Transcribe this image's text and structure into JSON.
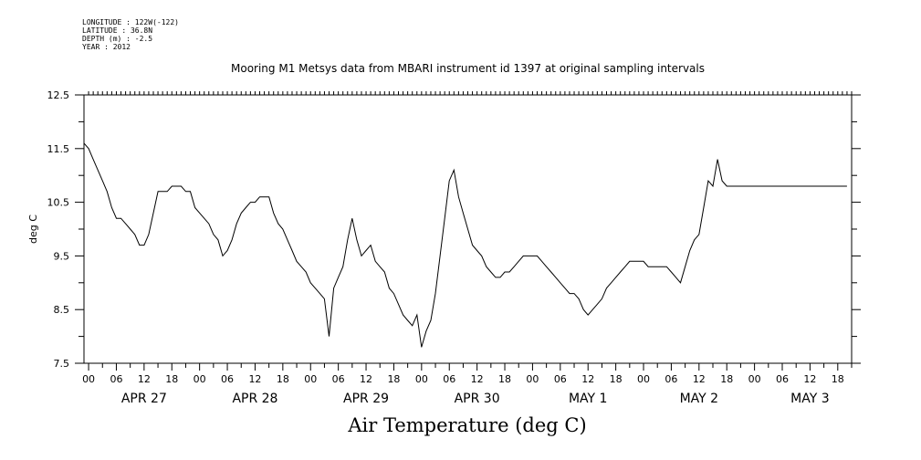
{
  "meta": {
    "longitude": "LONGITUDE : 122W(-122)",
    "latitude": "LATITUDE : 36.8N",
    "depth": "DEPTH (m) : -2.5",
    "year": "YEAR : 2012"
  },
  "chart_data": {
    "type": "line",
    "title": "Mooring M1 Metsys data from MBARI instrument id 1397 at original sampling intervals",
    "xlabel": "Air Temperature (deg C)",
    "ylabel": "deg C",
    "ylim": [
      7.5,
      12.5
    ],
    "yticks": [
      "7.5",
      "8.5",
      "9.5",
      "10.5",
      "11.5",
      "12.5"
    ],
    "xlim_hours": [
      -1,
      165
    ],
    "hour_ticks": [
      "00",
      "06",
      "12",
      "18",
      "00",
      "06",
      "12",
      "18",
      "00",
      "06",
      "12",
      "18",
      "00",
      "06",
      "12",
      "18",
      "00",
      "06",
      "12",
      "18",
      "00",
      "06",
      "12",
      "18",
      "00",
      "06",
      "12",
      "18"
    ],
    "day_labels": [
      "APR 27",
      "APR 28",
      "APR 29",
      "APR 30",
      "MAY  1",
      "MAY  2",
      "MAY  3"
    ],
    "grid": false,
    "legend": "none",
    "line_color": "#000000",
    "series": [
      {
        "x": [
          -1,
          0,
          1,
          2,
          3,
          4,
          5,
          6,
          7,
          8,
          9,
          10,
          11,
          12,
          13,
          14,
          15,
          16,
          17,
          18,
          19,
          20,
          21,
          22,
          23,
          24,
          25,
          26,
          27,
          28,
          29,
          30,
          31,
          32,
          33,
          34,
          35,
          36,
          37,
          38,
          39,
          40,
          41,
          42,
          43,
          44,
          45,
          46,
          47,
          48,
          49,
          50,
          51,
          52,
          53,
          54,
          55,
          56,
          57,
          58,
          59,
          60,
          61,
          62,
          63,
          64,
          65,
          66,
          67,
          68,
          69,
          70,
          71,
          72,
          73,
          74,
          75,
          76,
          77,
          78,
          79,
          80,
          81,
          82,
          83,
          84,
          85,
          86,
          87,
          88,
          89,
          90,
          91,
          92,
          93,
          94,
          95,
          96,
          97,
          98,
          99,
          100,
          101,
          102,
          103,
          104,
          105,
          106,
          107,
          108,
          109,
          110,
          111,
          112,
          113,
          114,
          115,
          116,
          117,
          118,
          119,
          120,
          121,
          122,
          123,
          124,
          125,
          126,
          127,
          128,
          129,
          130,
          131,
          132,
          133,
          134,
          135,
          136,
          137,
          138,
          139,
          140,
          141,
          142,
          143,
          144,
          145,
          146,
          147,
          148,
          149,
          150,
          151,
          152,
          153,
          154,
          155,
          156,
          157,
          158,
          159,
          160,
          161,
          162,
          163,
          164
        ],
        "y": [
          11.6,
          11.5,
          11.3,
          11.1,
          10.9,
          10.7,
          10.4,
          10.2,
          10.2,
          10.1,
          10.0,
          9.9,
          9.7,
          9.7,
          9.9,
          10.3,
          10.7,
          10.7,
          10.7,
          10.8,
          10.8,
          10.8,
          10.7,
          10.7,
          10.4,
          10.3,
          10.2,
          10.1,
          9.9,
          9.8,
          9.5,
          9.6,
          9.8,
          10.1,
          10.3,
          10.4,
          10.5,
          10.5,
          10.6,
          10.6,
          10.6,
          10.3,
          10.1,
          10.0,
          9.8,
          9.6,
          9.4,
          9.3,
          9.2,
          9.0,
          8.9,
          8.8,
          8.7,
          8.0,
          8.9,
          9.1,
          9.3,
          9.8,
          10.2,
          9.8,
          9.5,
          9.6,
          9.7,
          9.4,
          9.3,
          9.2,
          8.9,
          8.8,
          8.6,
          8.4,
          8.3,
          8.2,
          8.4,
          7.8,
          8.1,
          8.3,
          8.8,
          9.5,
          10.2,
          10.9,
          11.1,
          10.6,
          10.3,
          10.0,
          9.7,
          9.6,
          9.5,
          9.3,
          9.2,
          9.1,
          9.1,
          9.2,
          9.2,
          9.3,
          9.4,
          9.5,
          9.5,
          9.5,
          9.5,
          9.4,
          9.3,
          9.2,
          9.1,
          9.0,
          8.9,
          8.8,
          8.8,
          8.7,
          8.5,
          8.4,
          8.5,
          8.6,
          8.7,
          8.9,
          9.0,
          9.1,
          9.2,
          9.3,
          9.4,
          9.4,
          9.4,
          9.4,
          9.3,
          9.3,
          9.3,
          9.3,
          9.3,
          9.2,
          9.1,
          9.0,
          9.3,
          9.6,
          9.8,
          9.9,
          10.4,
          10.9,
          10.8,
          11.3,
          10.9,
          10.8,
          10.8,
          10.8,
          10.8,
          10.8,
          10.8,
          10.8,
          10.8,
          10.8,
          10.8,
          10.8,
          10.8,
          10.8,
          10.8,
          10.8,
          10.8,
          10.8,
          10.8,
          10.8,
          10.8,
          10.8,
          10.8,
          10.8,
          10.8,
          10.8,
          10.8,
          10.8
        ]
      }
    ]
  }
}
